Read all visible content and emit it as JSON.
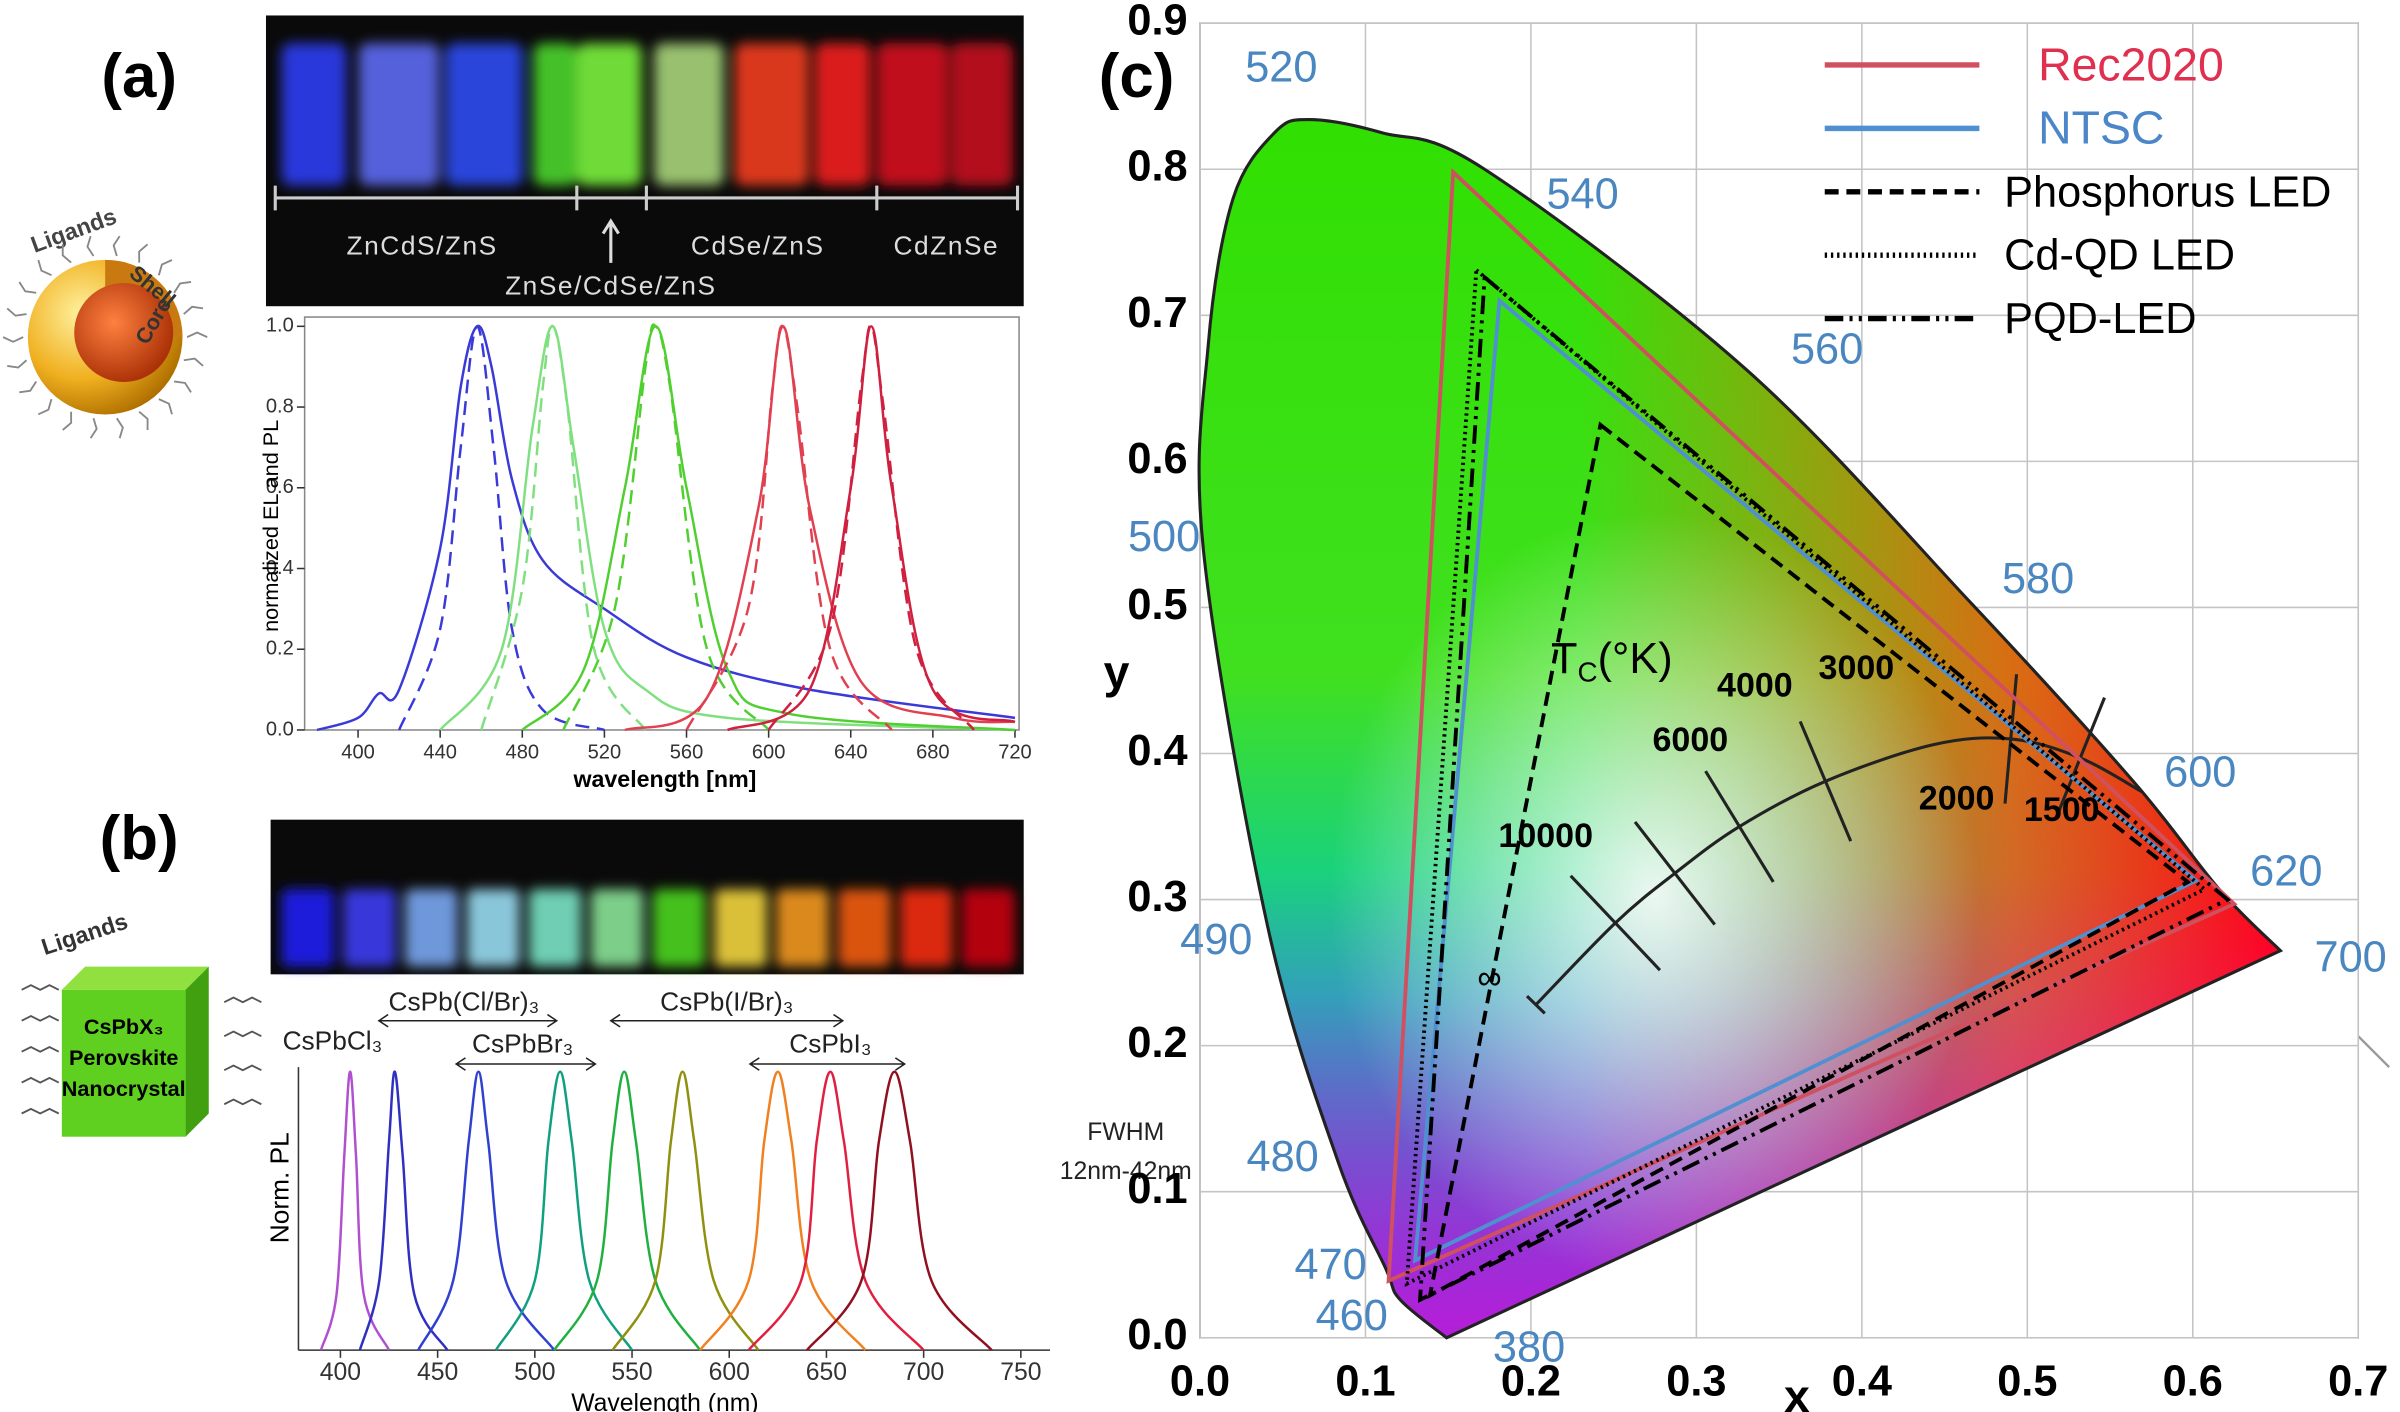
{
  "figure": {
    "panel_labels": [
      "(a)",
      "(b)",
      "(c)"
    ],
    "qd_schematic": {
      "ligands": "Ligands",
      "shell": "Shell",
      "core": "Core"
    },
    "perovskite_schematic": {
      "ligands": "Ligands",
      "lines": [
        "CsPbX₃",
        "Perovskite",
        "Nanocrystal"
      ]
    },
    "photo_a_labels": [
      "ZnCdS/ZnS",
      "ZnSe/CdSe/ZnS",
      "CdSe/ZnS",
      "CdZnSe"
    ]
  },
  "chart_data": [
    {
      "type": "line",
      "y_label": "normalized EL and PL",
      "x_label": "wavelength [nm]",
      "xlim": [
        380,
        722
      ],
      "xticks": [
        400,
        440,
        480,
        520,
        560,
        600,
        640,
        680,
        720
      ],
      "ylim": [
        0,
        1
      ],
      "yticks": [
        {
          "value": 0,
          "label": "0.0"
        },
        0.2,
        0.4,
        0.6,
        0.8,
        {
          "value": 1,
          "label": "1.0"
        }
      ],
      "series": [
        {
          "color": "#3a3ad8",
          "style": "solid",
          "x": [
            380,
            400,
            410,
            420,
            440,
            450,
            458,
            465,
            475,
            490,
            520,
            560,
            620,
            720
          ],
          "values": [
            0,
            0.03,
            0.09,
            0.1,
            0.45,
            0.85,
            1,
            0.9,
            0.62,
            0.42,
            0.3,
            0.18,
            0.1,
            0.03
          ]
        },
        {
          "color": "#3a3ad8",
          "style": "dashed",
          "x": [
            420,
            440,
            450,
            458,
            466,
            475,
            490,
            520
          ],
          "values": [
            0,
            0.25,
            0.7,
            1,
            0.7,
            0.25,
            0.05,
            0
          ]
        },
        {
          "color": "#80e080",
          "style": "solid",
          "x": [
            440,
            470,
            485,
            495,
            505,
            520,
            540,
            580,
            720
          ],
          "values": [
            0,
            0.2,
            0.75,
            1,
            0.7,
            0.25,
            0.1,
            0.03,
            0
          ]
        },
        {
          "color": "#80e080",
          "style": "dashed",
          "x": [
            460,
            480,
            490,
            495,
            502,
            515,
            540
          ],
          "values": [
            0,
            0.35,
            0.85,
            1,
            0.8,
            0.2,
            0
          ]
        },
        {
          "color": "#50d030",
          "style": "solid",
          "x": [
            480,
            510,
            530,
            545,
            560,
            580,
            610,
            720
          ],
          "values": [
            0,
            0.15,
            0.6,
            1,
            0.6,
            0.15,
            0.04,
            0
          ]
        },
        {
          "color": "#50d030",
          "style": "dashed",
          "x": [
            500,
            525,
            540,
            545,
            552,
            570,
            600
          ],
          "values": [
            0,
            0.3,
            0.9,
            1,
            0.85,
            0.2,
            0
          ]
        },
        {
          "color": "#e04050",
          "style": "solid",
          "x": [
            530,
            570,
            595,
            607,
            620,
            645,
            690,
            720
          ],
          "values": [
            0,
            0.08,
            0.55,
            1,
            0.55,
            0.12,
            0.03,
            0.02
          ]
        },
        {
          "color": "#e04050",
          "style": "dashed",
          "x": [
            560,
            590,
            602,
            607,
            614,
            630,
            660
          ],
          "values": [
            0,
            0.3,
            0.85,
            1,
            0.8,
            0.2,
            0
          ]
        },
        {
          "color": "#d02040",
          "style": "solid",
          "x": [
            580,
            620,
            640,
            650,
            660,
            680,
            720
          ],
          "values": [
            0,
            0.1,
            0.6,
            1,
            0.6,
            0.1,
            0.02
          ]
        },
        {
          "color": "#d02040",
          "style": "dashed",
          "x": [
            600,
            630,
            645,
            650,
            656,
            672,
            700
          ],
          "values": [
            0,
            0.25,
            0.85,
            1,
            0.8,
            0.2,
            0
          ]
        }
      ]
    },
    {
      "type": "line",
      "y_label": "Norm. PL",
      "x_label": "Wavelength (nm)",
      "xlim": [
        380,
        765
      ],
      "xticks": [
        400,
        450,
        500,
        550,
        600,
        650,
        700,
        750
      ],
      "ylim": [
        0,
        1
      ],
      "yticks": [],
      "annotations": [
        "CsPb(Cl/Br)₃",
        "CsPb(I/Br)₃",
        "CsPbCl₃",
        "CsPbBr₃",
        "CsPbI₃",
        "FWHM",
        "12nm-42nm"
      ],
      "series": [
        {
          "color": "#b050d0",
          "style": "solid",
          "x": [
            390,
            398,
            402,
            405,
            408,
            412,
            425
          ],
          "values": [
            0,
            0.2,
            0.7,
            1,
            0.7,
            0.2,
            0
          ]
        },
        {
          "color": "#3030c0",
          "style": "solid",
          "x": [
            410,
            420,
            425,
            428,
            432,
            438,
            455
          ],
          "values": [
            0,
            0.25,
            0.75,
            1,
            0.7,
            0.2,
            0
          ]
        },
        {
          "color": "#3040d0",
          "style": "solid",
          "x": [
            440,
            458,
            466,
            471,
            476,
            485,
            510
          ],
          "values": [
            0,
            0.25,
            0.75,
            1,
            0.75,
            0.25,
            0
          ]
        },
        {
          "color": "#10a080",
          "style": "solid",
          "x": [
            480,
            500,
            507,
            513,
            519,
            528,
            550
          ],
          "values": [
            0,
            0.25,
            0.75,
            1,
            0.75,
            0.25,
            0
          ]
        },
        {
          "color": "#20b040",
          "style": "solid",
          "x": [
            510,
            532,
            540,
            546,
            552,
            562,
            585
          ],
          "values": [
            0,
            0.25,
            0.75,
            1,
            0.75,
            0.25,
            0
          ]
        },
        {
          "color": "#909010",
          "style": "solid",
          "x": [
            540,
            562,
            570,
            576,
            582,
            592,
            615
          ],
          "values": [
            0,
            0.25,
            0.75,
            1,
            0.75,
            0.25,
            0
          ]
        },
        {
          "color": "#f08020",
          "style": "solid",
          "x": [
            585,
            610,
            618,
            625,
            632,
            642,
            670
          ],
          "values": [
            0,
            0.25,
            0.75,
            1,
            0.75,
            0.25,
            0
          ]
        },
        {
          "color": "#e02040",
          "style": "solid",
          "x": [
            610,
            637,
            645,
            652,
            659,
            670,
            700
          ],
          "values": [
            0,
            0.25,
            0.75,
            1,
            0.75,
            0.25,
            0
          ]
        },
        {
          "color": "#901020",
          "style": "solid",
          "x": [
            640,
            668,
            677,
            685,
            693,
            704,
            735
          ],
          "values": [
            0,
            0.25,
            0.75,
            1,
            0.75,
            0.25,
            0
          ]
        }
      ]
    },
    {
      "type": "chromaticity",
      "x_label": "x",
      "y_label": "y",
      "xlim": [
        0,
        0.7
      ],
      "xticks": [
        {
          "value": 0,
          "label": "0.0"
        },
        0.1,
        0.2,
        0.3,
        0.4,
        0.5,
        0.6,
        0.7
      ],
      "ylim": [
        0,
        0.9
      ],
      "yticks": [
        {
          "value": 0,
          "label": "0.0"
        },
        0.1,
        0.2,
        0.3,
        0.4,
        0.5,
        0.6,
        0.7,
        0.8,
        0.9
      ],
      "grid": true,
      "legend": "upper right",
      "spectral_locus": {
        "x": [
          0.149,
          0.121,
          0.112,
          0.083,
          0.041,
          0.002,
          0.005,
          0.02,
          0.045,
          0.066,
          0.11,
          0.172,
          0.331,
          0.466,
          0.564,
          0.616,
          0.653
        ],
        "values": [
          0.0,
          0.026,
          0.048,
          0.122,
          0.281,
          0.54,
          0.68,
          0.78,
          0.825,
          0.834,
          0.825,
          0.8,
          0.662,
          0.503,
          0.381,
          0.307,
          0.265
        ],
        "labels": [
          380,
          460,
          470,
          480,
          490,
          500,
          null,
          null,
          null,
          520,
          null,
          540,
          560,
          580,
          600,
          620,
          700
        ]
      },
      "series": [
        {
          "name": "Rec2020",
          "color": "#d05060",
          "text_color": "#e03050",
          "style": "solid",
          "x": [
            0.153,
            0.625,
            0.114
          ],
          "values": [
            0.798,
            0.297,
            0.039
          ]
        },
        {
          "name": "NTSC",
          "color": "#5090d0",
          "text_color": "#4a86c8",
          "style": "solid",
          "x": [
            0.181,
            0.602,
            0.13
          ],
          "values": [
            0.71,
            0.313,
            0.053
          ]
        },
        {
          "name": "Phosphorus LED",
          "color": "#000000",
          "text_color": "#000000",
          "style": "dashed",
          "x": [
            0.242,
            0.597,
            0.139
          ],
          "values": [
            0.625,
            0.312,
            0.029
          ]
        },
        {
          "name": "Cd-QD LED",
          "color": "#000000",
          "text_color": "#000000",
          "style": "dotted",
          "x": [
            0.167,
            0.607,
            0.125
          ],
          "values": [
            0.731,
            0.307,
            0.037
          ]
        },
        {
          "name": "PQD-LED",
          "color": "#000000",
          "text_color": "#000000",
          "style": "dashdot",
          "x": [
            0.172,
            0.621,
            0.133
          ],
          "values": [
            0.726,
            0.3,
            0.026
          ]
        }
      ],
      "planckian": {
        "name_main": "T",
        "name_sub": "C",
        "name_rest": "(°K)",
        "x": [
          0.203,
          0.251,
          0.287,
          0.326,
          0.378,
          0.443,
          0.49,
          0.532,
          0.569
        ],
        "values": [
          0.228,
          0.284,
          0.318,
          0.35,
          0.381,
          0.406,
          0.41,
          0.397,
          0.374
        ],
        "labels": [
          "∞",
          "10000",
          "6000",
          "4000",
          "3000",
          null,
          "2000",
          "1500",
          null
        ]
      }
    }
  ]
}
